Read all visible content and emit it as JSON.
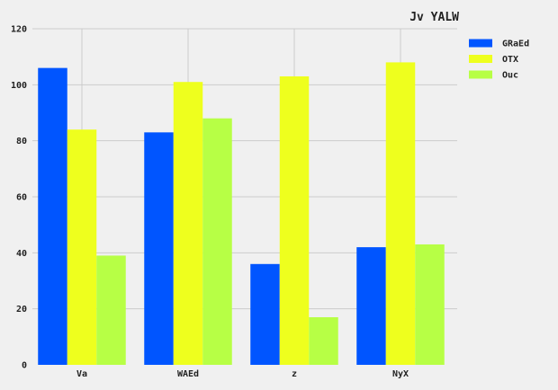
{
  "chart_data": {
    "type": "bar",
    "title": "Jv YALW",
    "xlabel": "",
    "ylabel": "",
    "categories": [
      "Va",
      "WAEd",
      "z",
      "NyX"
    ],
    "series": [
      {
        "name": "GRaEd",
        "color": "#0055ff",
        "values": [
          106,
          83,
          36,
          42
        ]
      },
      {
        "name": "OTX",
        "color": "#eeff1e",
        "values": [
          84,
          101,
          103,
          108
        ]
      },
      {
        "name": "Ouc",
        "color": "#b7ff45",
        "values": [
          39,
          88,
          17,
          43
        ]
      }
    ],
    "ylim": [
      0,
      120
    ],
    "yticks": [
      0,
      20,
      40,
      60,
      80,
      100,
      120
    ],
    "grid": true,
    "legend_position": "top-right"
  }
}
